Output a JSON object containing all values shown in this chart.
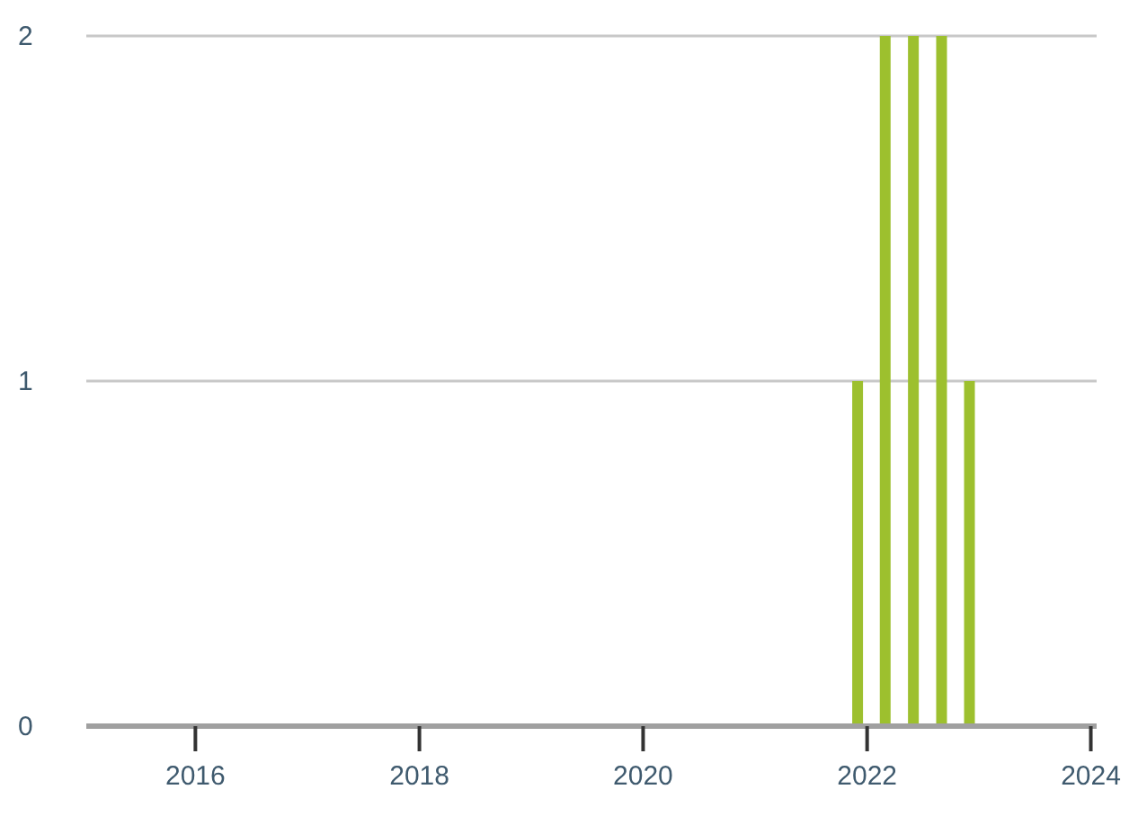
{
  "chart_data": {
    "type": "bar",
    "x": [
      "2021-12-01",
      "2022-03-01",
      "2022-06-01",
      "2022-09-01",
      "2022-12-01"
    ],
    "values": [
      1,
      2,
      2,
      2,
      1
    ],
    "color": "#9dc02e",
    "xlim": [
      "2015-01-10",
      "2024-01-20"
    ],
    "xticks": [
      {
        "value": "2016",
        "label": "2016"
      },
      {
        "value": "2018",
        "label": "2018"
      },
      {
        "value": "2020",
        "label": "2020"
      },
      {
        "value": "2022",
        "label": "2022"
      },
      {
        "value": "2024",
        "label": "2024"
      }
    ],
    "ylim": [
      0,
      2
    ],
    "yticks": [
      0,
      1,
      2
    ],
    "grid": "y"
  }
}
